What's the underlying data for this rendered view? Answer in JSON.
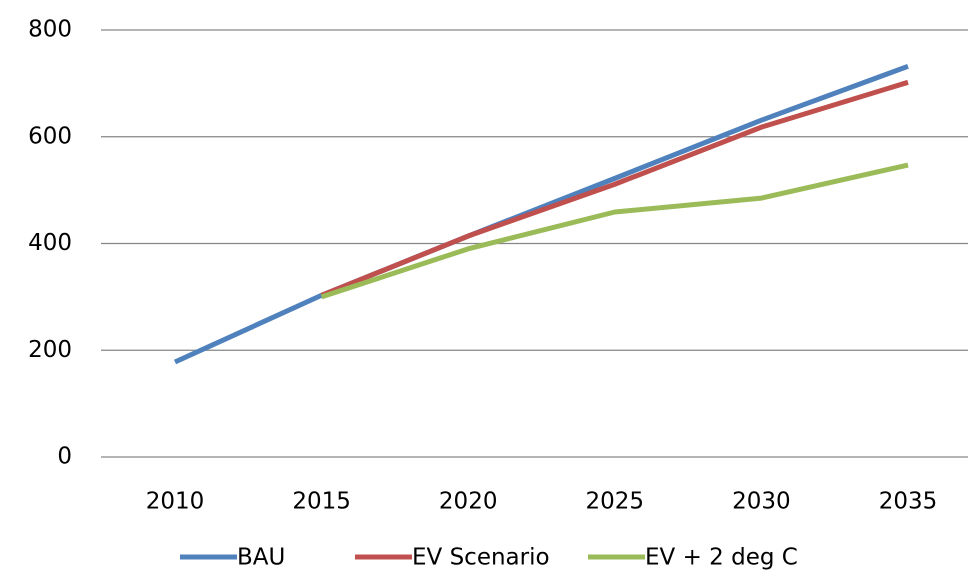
{
  "chart_data": {
    "type": "line",
    "categories": [
      "2010",
      "2015",
      "2020",
      "2025",
      "2030",
      "2035"
    ],
    "series": [
      {
        "name": "BAU",
        "color": "#4f81bd",
        "values": [
          178,
          303,
          414,
          522,
          631,
          732
        ]
      },
      {
        "name": "EV Scenario",
        "color": "#c0504d",
        "values": [
          null,
          303,
          414,
          511,
          618,
          702
        ]
      },
      {
        "name": "EV + 2 deg C",
        "color": "#9bbb59",
        "values": [
          null,
          300,
          390,
          459,
          485,
          547
        ]
      }
    ],
    "ylim": [
      0,
      800
    ],
    "yticks": [
      0,
      200,
      400,
      600,
      800
    ],
    "grid": true,
    "legend": "bottom"
  }
}
